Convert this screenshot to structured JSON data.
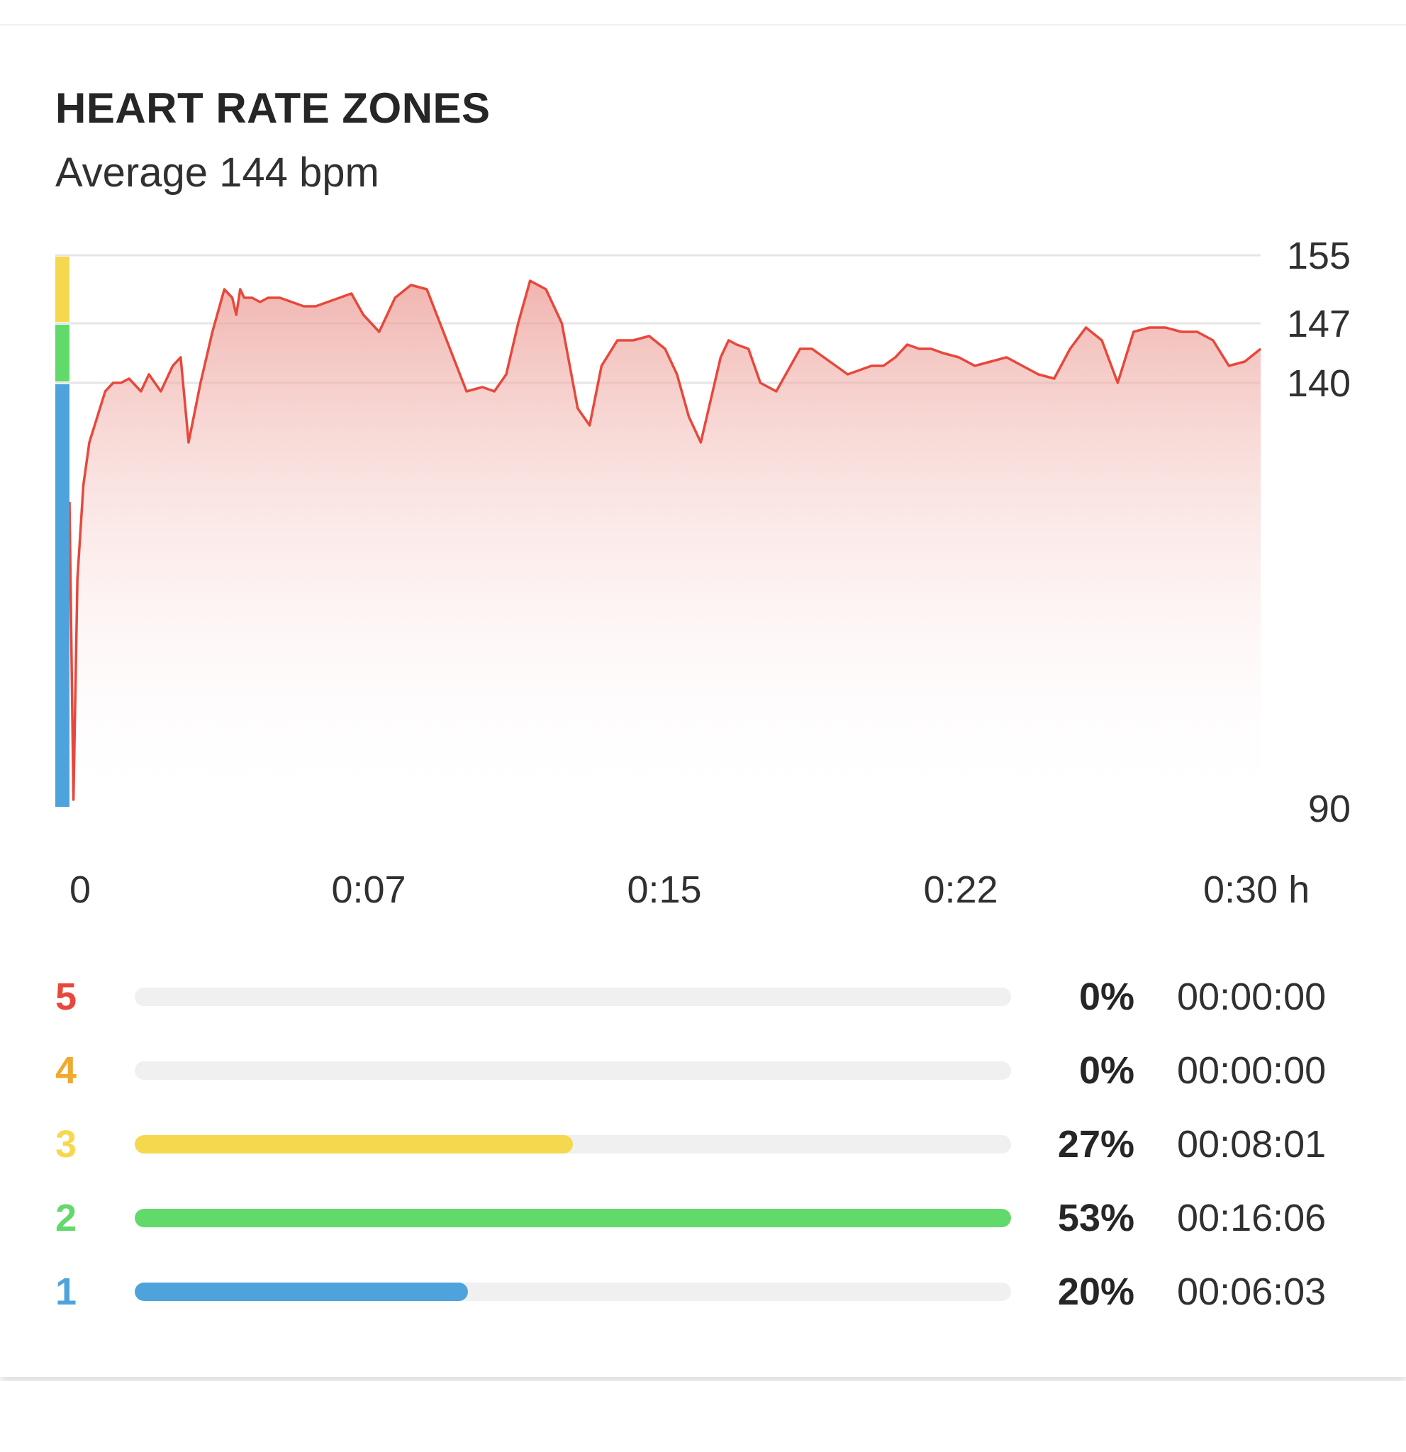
{
  "header": {
    "title": "HEART RATE ZONES",
    "subtitle": "Average 144 bpm"
  },
  "colors": {
    "line": "#e8473b",
    "fill_top": "#ec9c95",
    "zone5": "#e8473b",
    "zone4": "#f0a92e",
    "zone3": "#f6d84f",
    "zone2": "#62d96b",
    "zone1": "#4fa3dc",
    "track": "#f0f0f0",
    "grid": "#e6e6e6"
  },
  "chart_data": {
    "type": "area",
    "title": "HEART RATE ZONES",
    "subtitle": "Average 144 bpm",
    "ylim": [
      90,
      155
    ],
    "xlim": [
      0,
      30
    ],
    "y_ticks": [
      "155",
      "147",
      "140",
      "90"
    ],
    "y_tick_values": [
      155,
      147,
      140,
      90
    ],
    "x_ticks": [
      "0",
      "0:07",
      "0:15",
      "0:22",
      "0:30 h"
    ],
    "x_tick_values": [
      0,
      7.5,
      15,
      22.5,
      30
    ],
    "zone_band_bounds": [
      {
        "zone": 3,
        "from": 147,
        "to": 155
      },
      {
        "zone": 2,
        "from": 140,
        "to": 147
      },
      {
        "zone": 1,
        "from": 90,
        "to": 140
      }
    ],
    "series": [
      {
        "x": [
          0,
          0.1,
          0.2,
          0.35,
          0.5,
          0.7,
          0.9,
          1.1,
          1.3,
          1.5,
          1.8,
          2.0,
          2.3,
          2.6,
          2.8,
          3.0,
          3.3,
          3.6,
          3.9,
          4.1,
          4.2,
          4.3,
          4.4,
          4.6,
          4.8,
          5.0,
          5.3,
          5.6,
          5.9,
          6.2,
          6.5,
          6.8,
          7.1,
          7.4,
          7.8,
          8.2,
          8.6,
          9.0,
          9.5,
          10.0,
          10.4,
          10.7,
          11.0,
          11.3,
          11.6,
          12.0,
          12.4,
          12.8,
          13.1,
          13.4,
          13.8,
          14.2,
          14.6,
          15.0,
          15.3,
          15.6,
          15.9,
          16.2,
          16.4,
          16.6,
          16.8,
          17.1,
          17.4,
          17.8,
          18.1,
          18.4,
          18.7,
          19.0,
          19.3,
          19.6,
          19.9,
          20.2,
          20.5,
          20.8,
          21.1,
          21.4,
          21.7,
          22.0,
          22.4,
          22.8,
          23.2,
          23.6,
          24.0,
          24.4,
          24.8,
          25.2,
          25.6,
          26.0,
          26.4,
          26.8,
          27.2,
          27.6,
          28.0,
          28.4,
          28.8,
          29.2,
          29.6,
          30.0
        ],
        "y": [
          126,
          91,
          117,
          128,
          133,
          136,
          139,
          140,
          140,
          140.5,
          139,
          141,
          139,
          142,
          143,
          133,
          140,
          146,
          151,
          150,
          148,
          151,
          150,
          150,
          149.5,
          150,
          150,
          149.5,
          149,
          149,
          149.5,
          150,
          150.5,
          148,
          146,
          150,
          151.5,
          151,
          145,
          139,
          139.5,
          139,
          141,
          147,
          152,
          151,
          147,
          137,
          135,
          142,
          145,
          145,
          145.5,
          144,
          141,
          136,
          133,
          139,
          143,
          145,
          144.5,
          144,
          140,
          139,
          141.5,
          144,
          144,
          143,
          142,
          141,
          141.5,
          142,
          142,
          143,
          144.5,
          144,
          144,
          143.5,
          143,
          142,
          142.5,
          143,
          142,
          141,
          140.5,
          144,
          146.5,
          145,
          140,
          146,
          146.5,
          146.5,
          146,
          146,
          145,
          142,
          142.5,
          144
        ]
      }
    ],
    "zones": [
      {
        "zone": "5",
        "percent": 0,
        "percent_label": "0%",
        "time": "00:00:00"
      },
      {
        "zone": "4",
        "percent": 0,
        "percent_label": "0%",
        "time": "00:00:00"
      },
      {
        "zone": "3",
        "percent": 27,
        "percent_label": "27%",
        "time": "00:08:01"
      },
      {
        "zone": "2",
        "percent": 53,
        "percent_label": "53%",
        "time": "00:16:06"
      },
      {
        "zone": "1",
        "percent": 20,
        "percent_label": "20%",
        "time": "00:06:03"
      }
    ],
    "bar_fraction_of_track": [
      0,
      0,
      0.5,
      1.0,
      0.38
    ]
  }
}
